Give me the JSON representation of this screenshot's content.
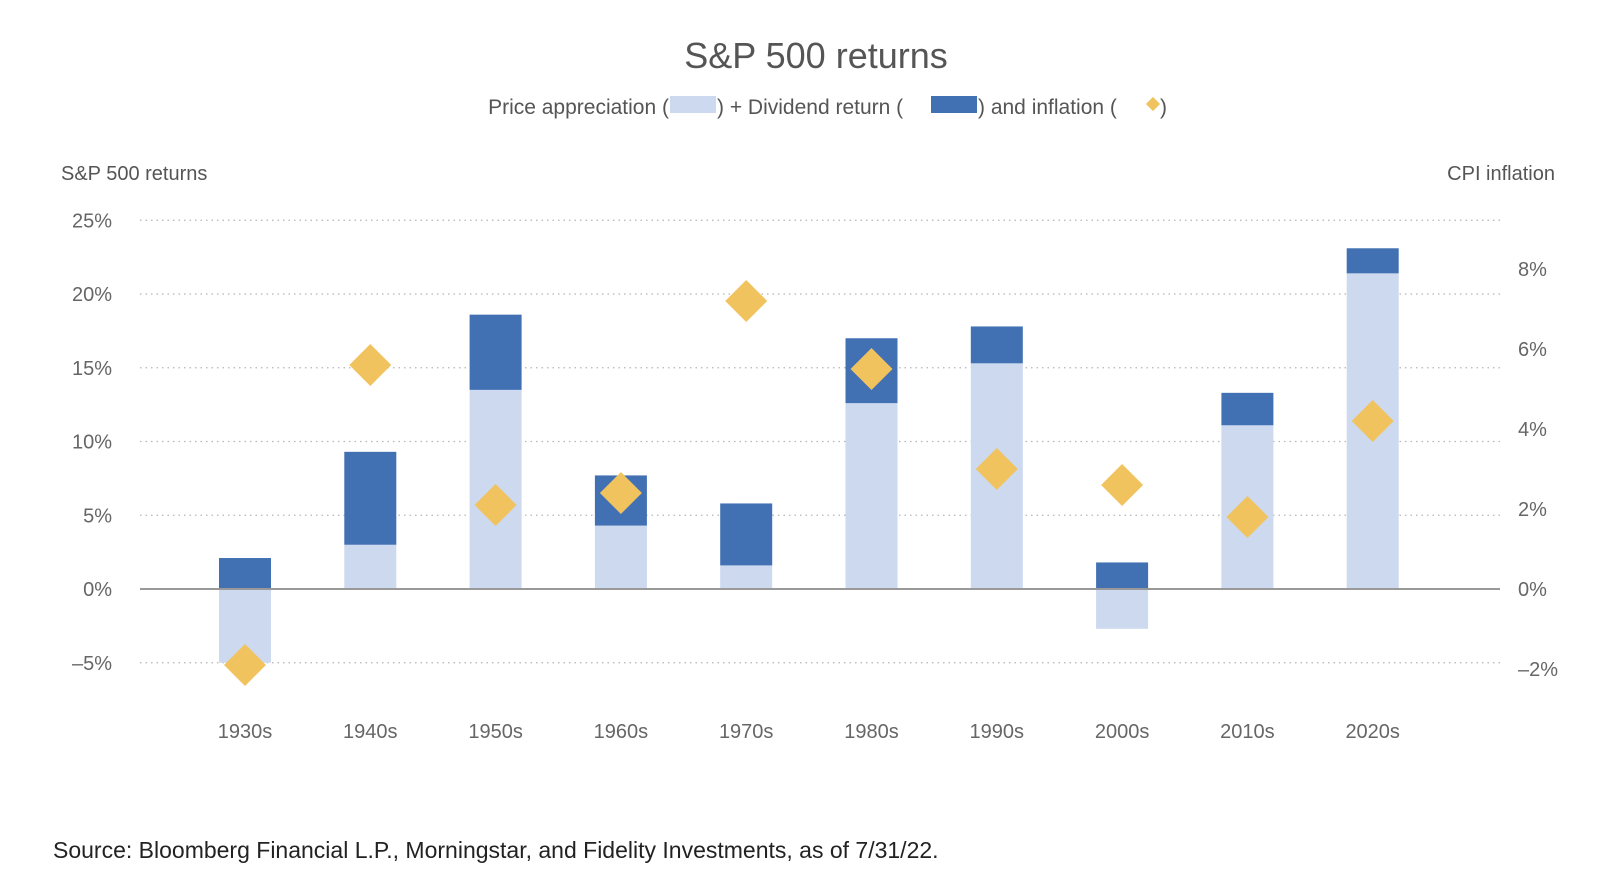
{
  "chart_data": {
    "type": "bar",
    "title": "S&P 500 returns",
    "subtitle": {
      "price_label": "Price appreciation (",
      "dividend_label": ") + Dividend return (",
      "inflation_label": ")  and inflation (",
      "end": ")"
    },
    "left_axis": {
      "label": "S&P 500 returns",
      "range": [
        -5,
        25
      ],
      "ticks": [
        25,
        20,
        15,
        10,
        5,
        0,
        -5
      ],
      "tick_labels": [
        "25%",
        "20%",
        "15%",
        "10%",
        "5%",
        "0%",
        "–5%"
      ]
    },
    "right_axis": {
      "label": "CPI inflation",
      "range": [
        -2,
        8
      ],
      "ticks": [
        8,
        6,
        4,
        2,
        0,
        -2
      ],
      "tick_labels": [
        "8%",
        "6%",
        "4%",
        "2%",
        "0%",
        "–2%"
      ]
    },
    "grid": "dotted-horizontal",
    "categories": [
      "1930s",
      "1940s",
      "1950s",
      "1960s",
      "1970s",
      "1980s",
      "1990s",
      "2000s",
      "2010s",
      "2020s"
    ],
    "series": [
      {
        "name": "Price appreciation",
        "axis": "left",
        "color": "#cdd9ee",
        "values": [
          -5.0,
          3.0,
          13.5,
          4.3,
          1.6,
          12.6,
          15.3,
          -2.7,
          11.1,
          21.4
        ]
      },
      {
        "name": "Dividend return",
        "axis": "left",
        "color": "#4170b3",
        "values": [
          2.1,
          6.3,
          5.1,
          3.4,
          4.2,
          4.4,
          2.5,
          1.8,
          2.2,
          1.7
        ]
      },
      {
        "name": "Inflation",
        "axis": "right",
        "type": "scatter",
        "marker": "diamond",
        "color": "#f1c35e",
        "values": [
          -1.9,
          5.6,
          2.1,
          2.4,
          7.2,
          5.5,
          3.0,
          2.6,
          1.8,
          4.2
        ]
      }
    ],
    "source": "Source: Bloomberg Financial L.P., Morningstar, and Fidelity Investments, as of 7/31/22."
  }
}
